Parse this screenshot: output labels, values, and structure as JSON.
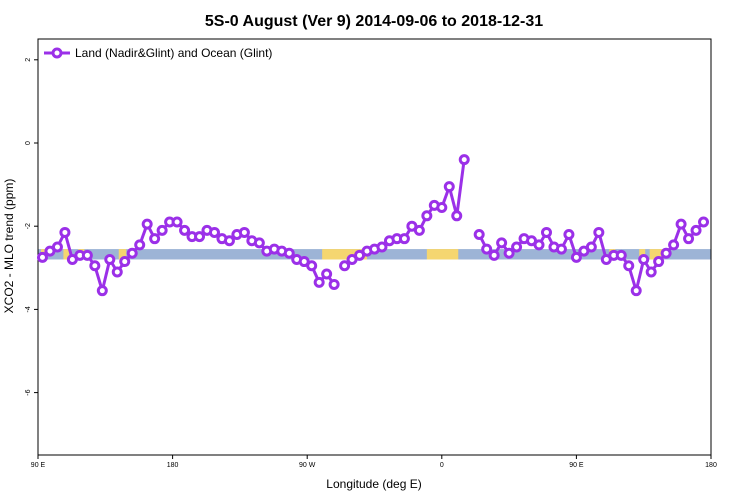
{
  "chart_data": {
    "type": "line",
    "title": "5S-0 August (Ver 9)   2014-09-06 to 2018-12-31",
    "xlabel": "Longitude (deg E)",
    "ylabel": "XCO2 - MLO trend (ppm)",
    "xlim": [
      90,
      540
    ],
    "ylim": [
      -7.5,
      2.5
    ],
    "x_ticks": [
      {
        "value": 90,
        "label": "90 E"
      },
      {
        "value": 180,
        "label": "180"
      },
      {
        "value": 270,
        "label": "90 W"
      },
      {
        "value": 360,
        "label": "0"
      },
      {
        "value": 450,
        "label": "90 E"
      },
      {
        "value": 540,
        "label": "180"
      }
    ],
    "y_ticks": [
      {
        "value": 2,
        "label": "2"
      },
      {
        "value": 0,
        "label": "0"
      },
      {
        "value": -2,
        "label": "-2"
      },
      {
        "value": -4,
        "label": "-4"
      },
      {
        "value": -6,
        "label": "-6"
      }
    ],
    "legend": {
      "position": "top-left",
      "label": "Land (Nadir&Glint) and Ocean (Glint)"
    },
    "colors": {
      "series": "#9b30e8",
      "ocean": "#9db4d6",
      "land": "#f5d670"
    },
    "surface_band": {
      "y_range": [
        -2.55,
        -2.8
      ],
      "land_segments": [
        [
          92,
          96
        ],
        [
          107,
          111
        ],
        [
          117,
          121
        ],
        [
          144,
          149
        ],
        [
          280,
          300
        ],
        [
          300,
          310
        ],
        [
          350,
          371
        ],
        [
          472,
          476
        ],
        [
          492,
          496
        ],
        [
          499,
          508
        ]
      ]
    },
    "series": [
      {
        "name": "Land (Nadir&Glint) and Ocean (Glint)",
        "segments": [
          {
            "x": [
              93,
              98,
              103,
              108,
              113,
              118,
              123,
              128,
              133,
              138,
              143,
              148,
              153,
              158,
              163,
              168,
              173,
              178,
              183,
              188,
              193,
              198,
              203,
              208,
              213,
              218,
              223,
              228,
              233,
              238,
              243,
              248,
              253,
              258,
              263,
              268,
              273,
              278,
              283,
              288,
              293
            ],
            "y": [
              -2.75,
              -2.6,
              -2.5,
              -2.15,
              -2.8,
              -2.7,
              -2.7,
              -2.95,
              -3.55,
              -2.8,
              -3.1,
              -2.85,
              -2.65,
              -2.45,
              -1.95,
              -2.3,
              -2.1,
              -1.9,
              -1.9,
              -2.1,
              -2.25,
              -2.25,
              -2.1,
              -2.15,
              -2.3,
              -2.35,
              -2.2,
              -2.15,
              -2.35,
              -2.4,
              -2.6,
              -2.55,
              -2.6,
              -2.65,
              -2.8,
              -2.85,
              -2.95,
              -3.35,
              -3.15,
              -3.4,
              null
            ]
          },
          {
            "x": [
              295,
              300,
              305,
              310,
              315,
              320,
              325,
              330,
              335,
              340,
              345,
              350,
              355,
              360,
              365,
              370,
              375
            ],
            "y": [
              -2.95,
              -2.8,
              -2.7,
              -2.6,
              -2.55,
              -2.5,
              -2.35,
              -2.3,
              -2.3,
              -2.0,
              -2.1,
              -1.75,
              -1.5,
              -1.55,
              -1.05,
              -1.75,
              -0.4
            ]
          },
          {
            "x": [
              385,
              390,
              395,
              400,
              405,
              410,
              415,
              420,
              425,
              430,
              435,
              440,
              445,
              450,
              455,
              460,
              465,
              470,
              475,
              480,
              485,
              490,
              495,
              500,
              505,
              510,
              515,
              520,
              525,
              530,
              535,
              540
            ],
            "y": [
              -2.2,
              -2.55,
              -2.7,
              -2.4,
              -2.65,
              -2.5,
              -2.3,
              -2.35,
              -2.45,
              -2.15,
              -2.5,
              -2.55,
              -2.2,
              -2.75,
              -2.6,
              -2.5,
              -2.15,
              -2.8,
              -2.7,
              -2.7,
              -2.95,
              -3.55,
              -2.8,
              -3.1,
              -2.85,
              -2.65,
              -2.45,
              -1.95,
              -2.3,
              -2.1,
              -1.9,
              null
            ]
          }
        ]
      }
    ]
  }
}
